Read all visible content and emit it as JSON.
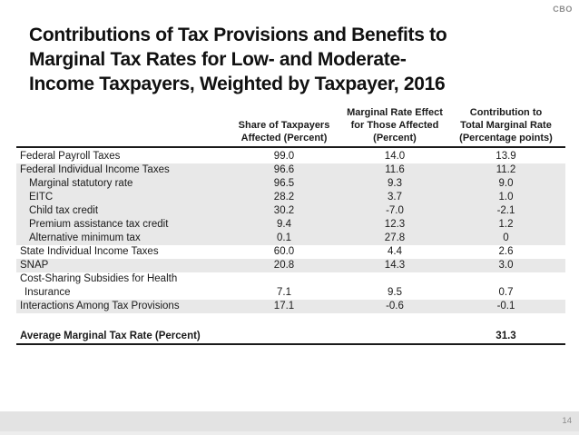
{
  "slide": {
    "logo": "CBO",
    "page_number": "14",
    "title_lines": [
      "Contributions of Tax Provisions and Benefits to",
      "Marginal Tax Rates for Low- and Moderate-",
      "Income Taxpayers, Weighted by Taxpayer, 2016"
    ]
  },
  "colors": {
    "text": "#1a1a1a",
    "row_shade": "#e8e8e8",
    "footer_band": "#e3e3e3",
    "muted_gray": "#8c8c8c"
  },
  "chart_data": {
    "type": "table",
    "title": "Contributions of Tax Provisions and Benefits to Marginal Tax Rates for Low- and Moderate-Income Taxpayers, Weighted by Taxpayer, 2016",
    "col_headers": [
      {
        "lines": [
          "Share of Taxpayers",
          "Affected (Percent)"
        ]
      },
      {
        "lines": [
          "Marginal Rate Effect",
          "for Those Affected",
          "(Percent)"
        ]
      },
      {
        "lines": [
          "Contribution to",
          "Total Marginal Rate",
          "(Percentage points)"
        ]
      }
    ],
    "rows": [
      {
        "label": "Federal Payroll Taxes",
        "indent": 0,
        "values": [
          "99.0",
          "14.0",
          "13.9"
        ],
        "shaded": false
      },
      {
        "label": "Federal Individual Income Taxes",
        "indent": 0,
        "values": [
          "96.6",
          "11.6",
          "11.2"
        ],
        "shaded": true
      },
      {
        "label": "Marginal statutory rate",
        "indent": 1,
        "values": [
          "96.5",
          "9.3",
          "9.0"
        ],
        "shaded": true
      },
      {
        "label": "EITC",
        "indent": 1,
        "values": [
          "28.2",
          "3.7",
          "1.0"
        ],
        "shaded": true
      },
      {
        "label": "Child tax credit",
        "indent": 1,
        "values": [
          "30.2",
          "-7.0",
          "-2.1"
        ],
        "shaded": true
      },
      {
        "label": "Premium assistance tax credit",
        "indent": 1,
        "values": [
          "9.4",
          "12.3",
          "1.2"
        ],
        "shaded": true
      },
      {
        "label": "Alternative minimum tax",
        "indent": 1,
        "values": [
          "0.1",
          "27.8",
          "0"
        ],
        "shaded": true
      },
      {
        "label": "State Individual Income Taxes",
        "indent": 0,
        "values": [
          "60.0",
          "4.4",
          "2.6"
        ],
        "shaded": false
      },
      {
        "label": "SNAP",
        "indent": 0,
        "values": [
          "20.8",
          "14.3",
          "3.0"
        ],
        "shaded": true
      },
      {
        "label": "Cost-Sharing Subsidies for Health",
        "indent": 0,
        "values": [
          "",
          "",
          ""
        ],
        "shaded": false
      },
      {
        "label": "Insurance",
        "indent": 2,
        "values": [
          "7.1",
          "9.5",
          "0.7"
        ],
        "shaded": false
      },
      {
        "label": "Interactions Among Tax Provisions",
        "indent": 0,
        "values": [
          "17.1",
          "-0.6",
          "-0.1"
        ],
        "shaded": true
      }
    ],
    "summary_row": {
      "label": "Average Marginal Tax Rate (Percent)",
      "values": [
        "",
        "",
        "31.3"
      ]
    }
  }
}
